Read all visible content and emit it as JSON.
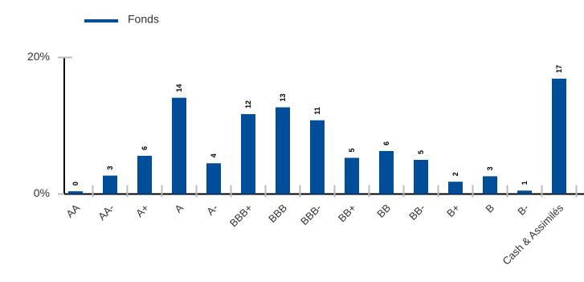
{
  "chart_data": {
    "type": "bar",
    "legend": {
      "position": "top-left"
    },
    "series": [
      {
        "name": "Fonds",
        "color": "#004d99",
        "values": [
          0.4,
          2.7,
          5.6,
          14.1,
          4.5,
          11.7,
          12.7,
          10.8,
          5.3,
          6.3,
          5.0,
          1.8,
          2.6,
          0.5,
          16.9
        ],
        "labels": [
          "0",
          "3",
          "6",
          "14",
          "4",
          "12",
          "13",
          "11",
          "5",
          "6",
          "5",
          "2",
          "3",
          "1",
          "17"
        ]
      }
    ],
    "categories": [
      "AA",
      "AA-",
      "A+",
      "A",
      "A-",
      "BBB+",
      "BBB",
      "BBB-",
      "BB+",
      "BB",
      "BB-",
      "B+",
      "B",
      "B-",
      "Cash & Assimilés"
    ],
    "y_ticks": [
      {
        "value": 0,
        "label": "0%"
      },
      {
        "value": 20,
        "label": "20%"
      }
    ],
    "ylim": [
      0,
      20
    ],
    "grid": false
  }
}
